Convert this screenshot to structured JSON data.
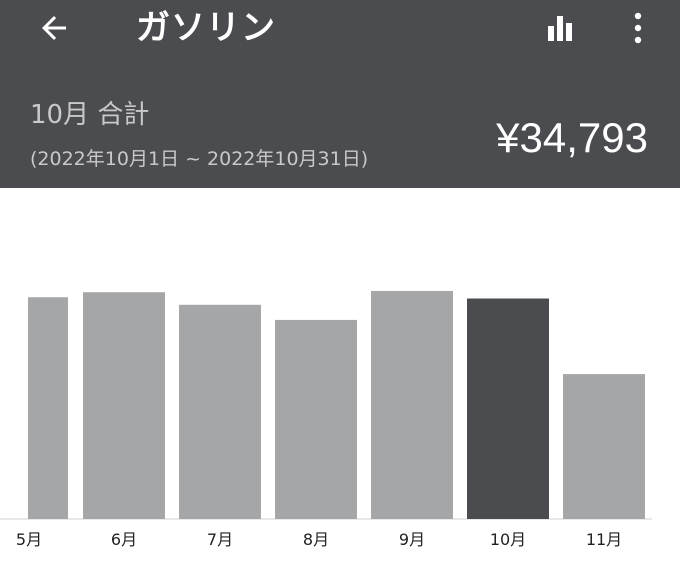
{
  "header": {
    "title": "ガソリン",
    "back_icon": "arrow-left-icon",
    "chart_icon": "bar-chart-icon",
    "more_icon": "more-vertical-icon"
  },
  "summary": {
    "label": "10月 合計",
    "range": "(2022年10月1日 ~ 2022年10月31日)",
    "amount": "¥34,793"
  },
  "colors": {
    "appbar": "#4b4c50",
    "bar": "#a5a6a8",
    "bar_selected": "#4b4c50"
  },
  "chart_data": {
    "type": "bar",
    "categories": [
      "5月",
      "6月",
      "7月",
      "8月",
      "9月",
      "10月",
      "11月"
    ],
    "values": [
      35200,
      36000,
      34000,
      31600,
      36200,
      35000,
      23000
    ],
    "selected": "10月",
    "ylim": [
      0,
      40000
    ]
  }
}
